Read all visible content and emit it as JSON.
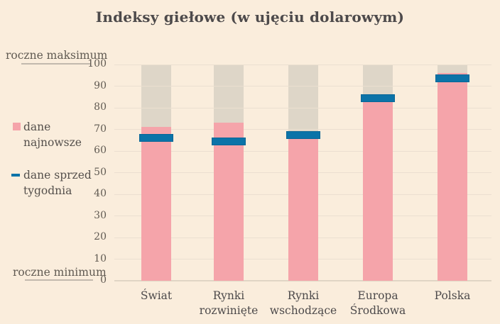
{
  "title": "Indeksy giełowe (w ujęciu dolarowym)",
  "annotations": {
    "max_label": "roczne maksimum",
    "min_label": "roczne minimum"
  },
  "legend": [
    {
      "label": "dane\nnajnowsze",
      "marker": "square-icon",
      "color": "#F5A4AA"
    },
    {
      "label": "dane sprzed\ntygodnia",
      "marker": "dash-icon",
      "color": "#0B73A8"
    }
  ],
  "chart_data": {
    "type": "bar",
    "title": "Indeksy giełowe (w ujęciu dolarowym)",
    "categories": [
      "Świat",
      "Rynki\nrozwinięte",
      "Rynki\nwschodzące",
      "Europa\nŚrodkowa",
      "Polska"
    ],
    "series": [
      {
        "name": "dane najnowsze",
        "type": "bar",
        "color": "#F5A4AA",
        "values": [
          71,
          73,
          66,
          84,
          96
        ]
      },
      {
        "name": "dane sprzed tygodnia",
        "type": "tick-line",
        "color": "#0B73A8",
        "values": [
          66,
          64.5,
          67.5,
          84.5,
          93.5
        ]
      }
    ],
    "range_band": {
      "min": 0,
      "max": 100,
      "min_label": "roczne minimum",
      "max_label": "roczne maksimum",
      "color": "#DED6C8"
    },
    "xlabel": "",
    "ylabel": "",
    "ylim": [
      0,
      100
    ],
    "yticks": [
      0,
      10,
      20,
      30,
      40,
      50,
      60,
      70,
      80,
      90,
      100
    ],
    "grid": "horizontal",
    "legend_position": "left"
  },
  "colors": {
    "bg": "#FAEDDC",
    "range_bar": "#DED6C8",
    "latest_bar": "#F5A4AA",
    "week_line": "#0B73A8",
    "title_text": "#4D4A4B",
    "label_text": "#55504C",
    "muted_text": "#605A52",
    "gridline": "#EBDFD0",
    "zero_line": "#E0D5C5",
    "annotation_line": "#C2B9AD"
  }
}
